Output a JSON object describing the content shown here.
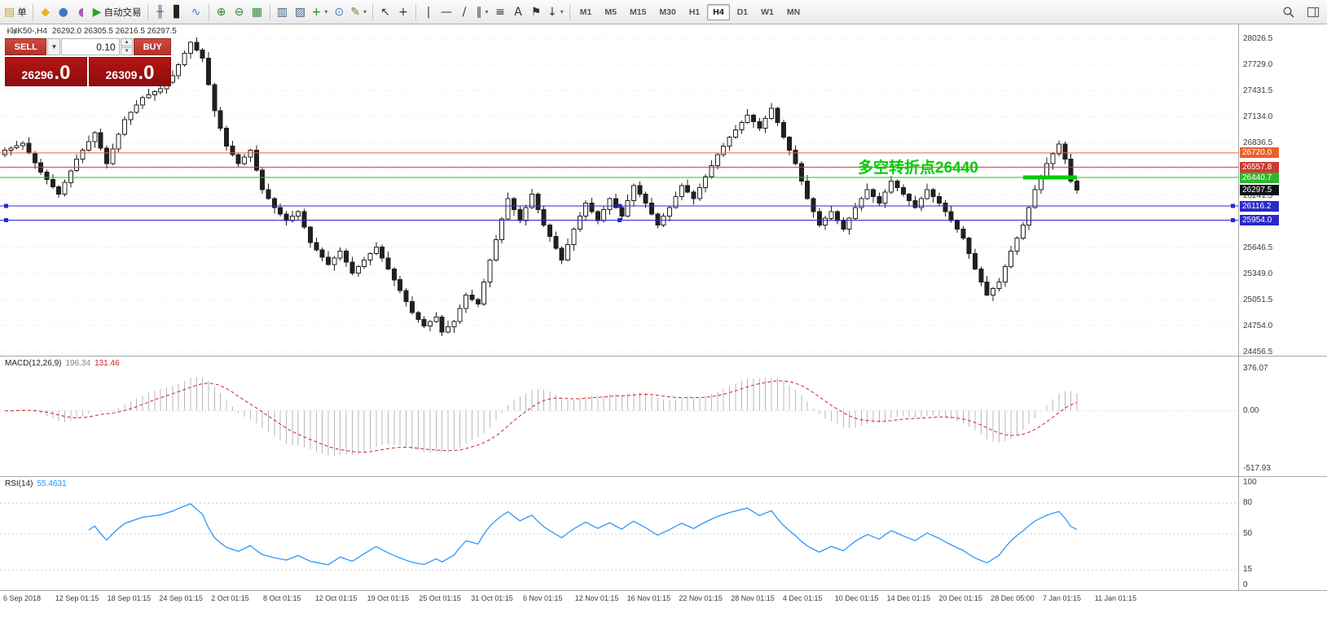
{
  "toolbar": {
    "groups": [
      {
        "items": [
          {
            "name": "new-order-button",
            "glyph": "▤",
            "color": "#c9a227",
            "label": "单"
          }
        ]
      },
      {
        "items": [
          {
            "name": "charts-icon",
            "glyph": "◆",
            "color": "#e0b32b"
          },
          {
            "name": "market-watch-icon",
            "glyph": "●",
            "color": "#3f76c9"
          },
          {
            "name": "navigator-icon",
            "glyph": "◖",
            "color": "#a85ec0"
          },
          {
            "name": "autotrading-button",
            "glyph": "▶",
            "color": "#28a428",
            "label": "自动交易"
          }
        ]
      },
      {
        "items": [
          {
            "name": "bar-chart-icon",
            "glyph": "╫",
            "color": "#44618c"
          },
          {
            "name": "candlestick-chart-icon",
            "glyph": "▋",
            "color": "#222222"
          },
          {
            "name": "line-chart-icon",
            "glyph": "∿",
            "color": "#3f76c9"
          }
        ]
      },
      {
        "items": [
          {
            "name": "zoom-in-icon",
            "glyph": "⊕",
            "color": "#3a7d3a"
          },
          {
            "name": "zoom-out-icon",
            "glyph": "⊖",
            "color": "#3a7d3a"
          },
          {
            "name": "tile-windows-icon",
            "glyph": "▦",
            "color": "#2f8f2f"
          }
        ]
      },
      {
        "items": [
          {
            "name": "indicator-window-icon",
            "glyph": "▥",
            "color": "#44618c"
          },
          {
            "name": "chart-objects-icon",
            "glyph": "▨",
            "color": "#44618c"
          },
          {
            "name": "add-indicator-button",
            "glyph": "+",
            "color": "#1f8f1f",
            "caret": true
          },
          {
            "name": "periods-button",
            "glyph": "⊙",
            "color": "#3f76c9"
          },
          {
            "name": "templates-button",
            "glyph": "✎",
            "color": "#8a6d3b",
            "caret": true
          }
        ]
      },
      {
        "items": [
          {
            "name": "cursor-icon",
            "glyph": "↖",
            "color": "#333333"
          },
          {
            "name": "crosshair-icon",
            "glyph": "+",
            "color": "#333333"
          }
        ]
      },
      {
        "items": [
          {
            "name": "vertical-line-icon",
            "glyph": "|",
            "color": "#333333"
          },
          {
            "name": "horizontal-line-icon",
            "glyph": "—",
            "color": "#333333"
          },
          {
            "name": "trendline-icon",
            "glyph": "/",
            "color": "#333333"
          },
          {
            "name": "channel-icon",
            "glyph": "∥",
            "color": "#333333",
            "caret": true
          },
          {
            "name": "fibonacci-icon",
            "glyph": "≡",
            "color": "#333333"
          },
          {
            "name": "text-icon",
            "glyph": "A",
            "color": "#333333"
          },
          {
            "name": "label-icon",
            "glyph": "⚑",
            "color": "#333333"
          },
          {
            "name": "arrows-icon",
            "glyph": "↓",
            "color": "#333333",
            "caret": true
          }
        ]
      }
    ],
    "timeframes": [
      "M1",
      "M5",
      "M15",
      "M30",
      "H1",
      "H4",
      "D1",
      "W1",
      "MN"
    ],
    "active_timeframe": "H4"
  },
  "header": {
    "symbol": "HK50-,H4",
    "ohlc": "26292.0 26305.5 26216.5 26297.5"
  },
  "trade_panel": {
    "sell_label": "SELL",
    "buy_label": "BUY",
    "volume": "0.10",
    "sell_price": "26296",
    "sell_pips": ".0",
    "buy_price": "26309",
    "buy_pips": ".0"
  },
  "chart_data": {
    "type": "candlestick",
    "symbol": "HK50-",
    "timeframe": "H4",
    "ohlc_display": {
      "open": "26292.0",
      "high": "26305.5",
      "low": "26216.5",
      "close": "26297.5"
    },
    "ylim": [
      24456.5,
      28026.5
    ],
    "price_axis": {
      "gridline_prices": [
        28026.5,
        27729.0,
        27431.5,
        27134.0,
        26836.5,
        26539.0,
        26241.5,
        25944.0,
        25646.5,
        25349.0,
        25051.5,
        24754.0,
        24456.5
      ],
      "visible_labels": [
        "28026.5",
        "27729.0",
        "27431.5",
        "27134.0",
        "26836.5",
        "26241.5",
        "25646.5",
        "25349.0",
        "25051.5",
        "24754.0",
        "24456.5"
      ]
    },
    "levels": [
      {
        "price": 26720.0,
        "label": "26720.0",
        "color": "#e8632c"
      },
      {
        "price": 26557.8,
        "label": "26557.8",
        "color": "#d0392b"
      },
      {
        "price": 26440.7,
        "label": "26440.7",
        "color": "#2db82d",
        "thick": [
          1256,
          1322
        ],
        "thick_color": "#00cc00"
      },
      {
        "price": 26297.5,
        "label": "26297.5",
        "color": "#101018",
        "axis_only": true
      },
      {
        "price": 26116.2,
        "label": "26116.2",
        "color": "#2a2ac8",
        "handles": true
      },
      {
        "price": 25954.0,
        "label": "25954.0",
        "color": "#2a2ac8",
        "handles": true
      }
    ],
    "annotation": {
      "text": "多空转折点26440",
      "color": "#00cc00"
    },
    "candles": {
      "open_first": 26700,
      "closes": [
        26750,
        26777,
        26803,
        26830,
        26720,
        26610,
        26500,
        26417,
        26333,
        26250,
        26383,
        26517,
        26650,
        26750,
        26850,
        26950,
        26775,
        26600,
        26767,
        26933,
        27100,
        27183,
        27267,
        27350,
        27383,
        27417,
        27450,
        27525,
        27600,
        27727,
        27853,
        27980,
        27890,
        27800,
        27500,
        27200,
        27000,
        26800,
        26700,
        26600,
        26675,
        26750,
        26525,
        26300,
        26200,
        26100,
        26025,
        25950,
        26000,
        26050,
        25875,
        25700,
        25617,
        25533,
        25450,
        25525,
        25600,
        25475,
        25350,
        25425,
        25500,
        25575,
        25650,
        25525,
        25400,
        25275,
        25150,
        25025,
        24900,
        24825,
        24750,
        24800,
        24850,
        24680,
        24740,
        24800,
        24950,
        25100,
        25050,
        25000,
        25250,
        25500,
        25733,
        25967,
        26200,
        26075,
        25950,
        26100,
        26250,
        26075,
        25900,
        25767,
        25633,
        25500,
        25675,
        25850,
        26000,
        26150,
        26050,
        25950,
        26075,
        26200,
        26100,
        26000,
        26175,
        26350,
        26250,
        26150,
        26025,
        25900,
        26000,
        26100,
        26225,
        26350,
        26275,
        26200,
        26325,
        26450,
        26575,
        26700,
        26800,
        26900,
        26983,
        27067,
        27150,
        27075,
        27000,
        27115,
        27230,
        27065,
        26900,
        26750,
        26600,
        26400,
        26200,
        26050,
        25900,
        25975,
        26050,
        25950,
        25850,
        25975,
        26100,
        26200,
        26300,
        26225,
        26150,
        26275,
        26400,
        26325,
        26250,
        26175,
        26100,
        26200,
        26300,
        26225,
        26150,
        26050,
        25950,
        25850,
        25750,
        25575,
        25400,
        25250,
        25100,
        25175,
        25250,
        25425,
        25600,
        25750,
        25900,
        26100,
        26300,
        26450,
        26600,
        26710,
        26820,
        26650,
        26400,
        26297.5
      ]
    },
    "macd": {
      "title": "MACD(12,26,9)",
      "value_main": "196.34",
      "value_signal": "131.46",
      "scale_max": 376.07,
      "scale_min": -517.93,
      "axis_labels": [
        "376.07",
        "0.00",
        "-517.93"
      ],
      "histogram_color": "#b8b8b8",
      "signal_color": "#d02020"
    },
    "rsi": {
      "title": "RSI(14)",
      "value": "55.4631",
      "range": [
        0,
        100
      ],
      "levels": [
        80,
        50,
        15
      ],
      "axis_labels": [
        "100",
        "80",
        "50",
        "15",
        "0"
      ],
      "line_color": "#1e90ff"
    },
    "x_axis": {
      "labels": [
        "6 Sep 2018",
        "12 Sep 01:15",
        "18 Sep 01:15",
        "24 Sep 01:15",
        "2 Oct 01:15",
        "8 Oct 01:15",
        "12 Oct 01:15",
        "19 Oct 01:15",
        "25 Oct 01:15",
        "31 Oct 01:15",
        "6 Nov 01:15",
        "12 Nov 01:15",
        "16 Nov 01:15",
        "22 Nov 01:15",
        "28 Nov 01:15",
        "4 Dec 01:15",
        "10 Dec 01:15",
        "14 Dec 01:15",
        "20 Dec 01:15",
        "28 Dec 05:00",
        "7 Jan 01:15",
        "11 Jan 01:15"
      ]
    }
  }
}
